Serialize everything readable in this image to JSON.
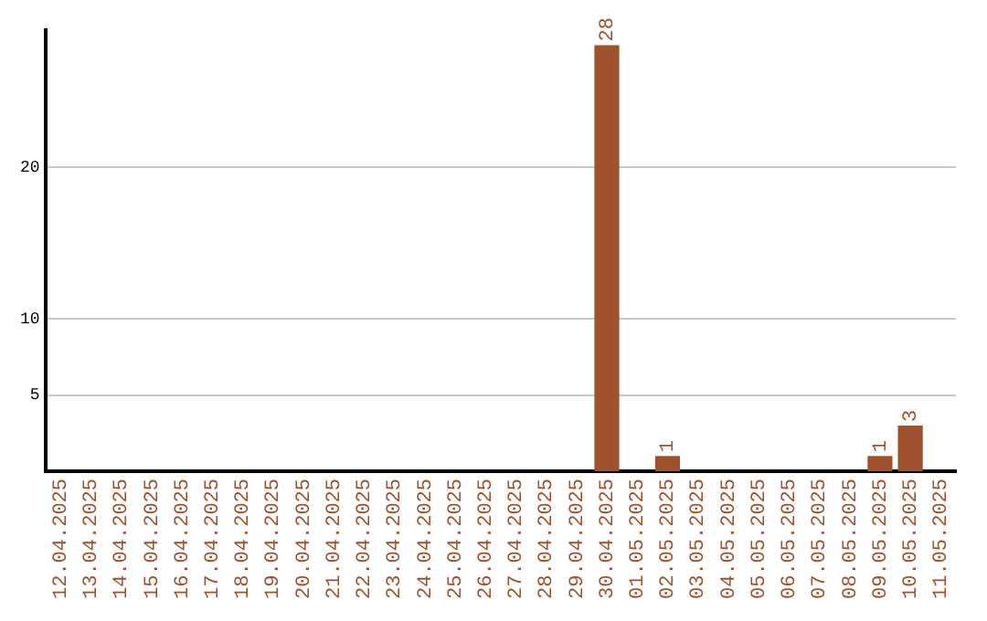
{
  "chart_data": {
    "type": "bar",
    "categories": [
      "12.04.2025",
      "13.04.2025",
      "14.04.2025",
      "15.04.2025",
      "16.04.2025",
      "17.04.2025",
      "18.04.2025",
      "19.04.2025",
      "20.04.2025",
      "21.04.2025",
      "22.04.2025",
      "23.04.2025",
      "24.04.2025",
      "25.04.2025",
      "26.04.2025",
      "27.04.2025",
      "28.04.2025",
      "29.04.2025",
      "30.04.2025",
      "01.05.2025",
      "02.05.2025",
      "03.05.2025",
      "04.05.2025",
      "05.05.2025",
      "06.05.2025",
      "07.05.2025",
      "08.05.2025",
      "09.05.2025",
      "10.05.2025",
      "11.05.2025"
    ],
    "values": [
      0,
      0,
      0,
      0,
      0,
      0,
      0,
      0,
      0,
      0,
      0,
      0,
      0,
      0,
      0,
      0,
      0,
      0,
      28,
      0,
      1,
      0,
      0,
      0,
      0,
      0,
      0,
      1,
      3,
      0
    ],
    "value_labels": [
      null,
      null,
      null,
      null,
      null,
      null,
      null,
      null,
      null,
      null,
      null,
      null,
      null,
      null,
      null,
      null,
      null,
      null,
      "28",
      null,
      "1",
      null,
      null,
      null,
      null,
      null,
      null,
      "1",
      "3",
      null
    ],
    "color": "#a0522d",
    "ylim": [
      0,
      29
    ],
    "yticks": [
      5,
      10,
      20
    ],
    "grid": "y",
    "legend": false
  }
}
